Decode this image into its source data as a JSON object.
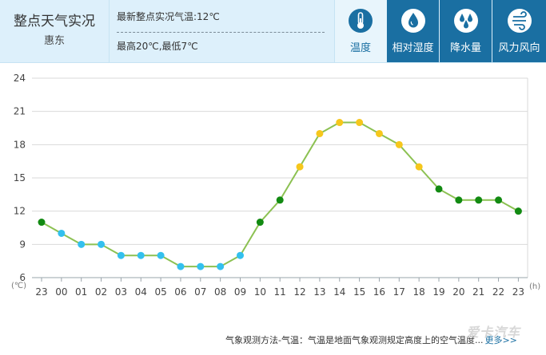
{
  "header": {
    "title": "整点天气实况",
    "city": "惠东",
    "current_temp": "最新整点实况气温:12℃",
    "high_low": "最高20℃,最低7℃"
  },
  "tabs": [
    {
      "label": "温度",
      "icon": "thermometer-icon",
      "active": true
    },
    {
      "label": "相对湿度",
      "icon": "humidity-drop-icon",
      "active": false
    },
    {
      "label": "降水量",
      "icon": "rain-drops-icon",
      "active": false
    },
    {
      "label": "风力风向",
      "icon": "wind-icon",
      "active": false
    }
  ],
  "footer": {
    "note": "气象观测方法-气温：气温是地面气象观测规定高度上的空气温度...",
    "more": "更多>>",
    "watermark": "爱卡汽车"
  },
  "colors": {
    "header_bg": "#ddf0fb",
    "tab_active_bg": "#e8f5fc",
    "tab_bg": "#1a6fa2",
    "line": "#8cc152",
    "cool": "#33c0ee",
    "mild": "#128a12",
    "warm": "#f6c71c",
    "grid": "#d9d9d9"
  },
  "chart_data": {
    "type": "line",
    "y_unit": "(℃)",
    "x_unit": "(h)",
    "categories": [
      "23",
      "00",
      "01",
      "02",
      "03",
      "04",
      "05",
      "06",
      "07",
      "08",
      "09",
      "10",
      "11",
      "12",
      "13",
      "14",
      "15",
      "16",
      "17",
      "18",
      "19",
      "20",
      "21",
      "22",
      "23"
    ],
    "values": [
      11,
      10,
      9,
      9,
      8,
      8,
      8,
      7,
      7,
      7,
      8,
      11,
      13,
      16,
      19,
      20,
      20,
      19,
      18,
      16,
      14,
      13,
      13,
      13,
      12
    ],
    "yticks": [
      6,
      9,
      12,
      15,
      18,
      21,
      24
    ],
    "ylim": [
      6,
      24
    ],
    "grid": true
  }
}
